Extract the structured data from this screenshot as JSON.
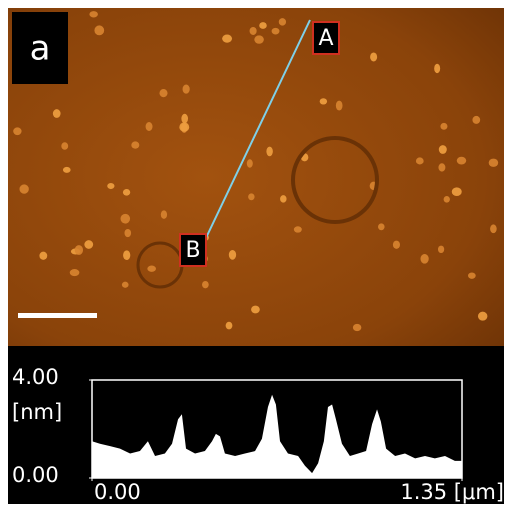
{
  "image": {
    "panel_label": "a",
    "marker_a": "A",
    "marker_b": "B"
  },
  "chart_data": {
    "type": "area",
    "y_label": "[nm]",
    "color": "#ffffff",
    "x": [
      0,
      0.029,
      0.066,
      0.102,
      0.139,
      0.175,
      0.204,
      0.23,
      0.266,
      0.292,
      0.314,
      0.328,
      0.343,
      0.376,
      0.412,
      0.438,
      0.452,
      0.467,
      0.485,
      0.522,
      0.558,
      0.595,
      0.62,
      0.642,
      0.657,
      0.671,
      0.686,
      0.715,
      0.752,
      0.777,
      0.803,
      0.825,
      0.846,
      0.861,
      0.876,
      0.89,
      0.912,
      0.941,
      0.971,
      1.0,
      1.022,
      1.04,
      1.054,
      1.073,
      1.106,
      1.142,
      1.179,
      1.215,
      1.251,
      1.288,
      1.324,
      1.35
    ],
    "values": [
      1.5,
      1.4,
      1.3,
      1.2,
      1.0,
      1.1,
      1.5,
      0.9,
      1.0,
      1.4,
      2.4,
      2.6,
      1.2,
      1.0,
      1.1,
      1.5,
      1.8,
      1.7,
      1.0,
      0.9,
      1.0,
      1.1,
      1.6,
      2.9,
      3.4,
      3.0,
      1.5,
      1.0,
      0.9,
      0.5,
      0.2,
      0.6,
      1.5,
      2.9,
      3.0,
      2.4,
      1.4,
      0.9,
      1.0,
      1.1,
      2.2,
      2.8,
      2.3,
      1.2,
      0.9,
      1.0,
      0.8,
      0.9,
      0.8,
      0.9,
      0.7,
      0.7
    ],
    "xlim": [
      0,
      1.35
    ],
    "ylim": [
      0,
      4
    ],
    "xticks": [
      {
        "value": 0,
        "label": "0.00"
      },
      {
        "value": 1.35,
        "label": "1.35 [μm]"
      }
    ],
    "yticks": [
      {
        "value": 0,
        "label": "0.00"
      },
      {
        "value": 4,
        "label": "4.00"
      }
    ]
  }
}
